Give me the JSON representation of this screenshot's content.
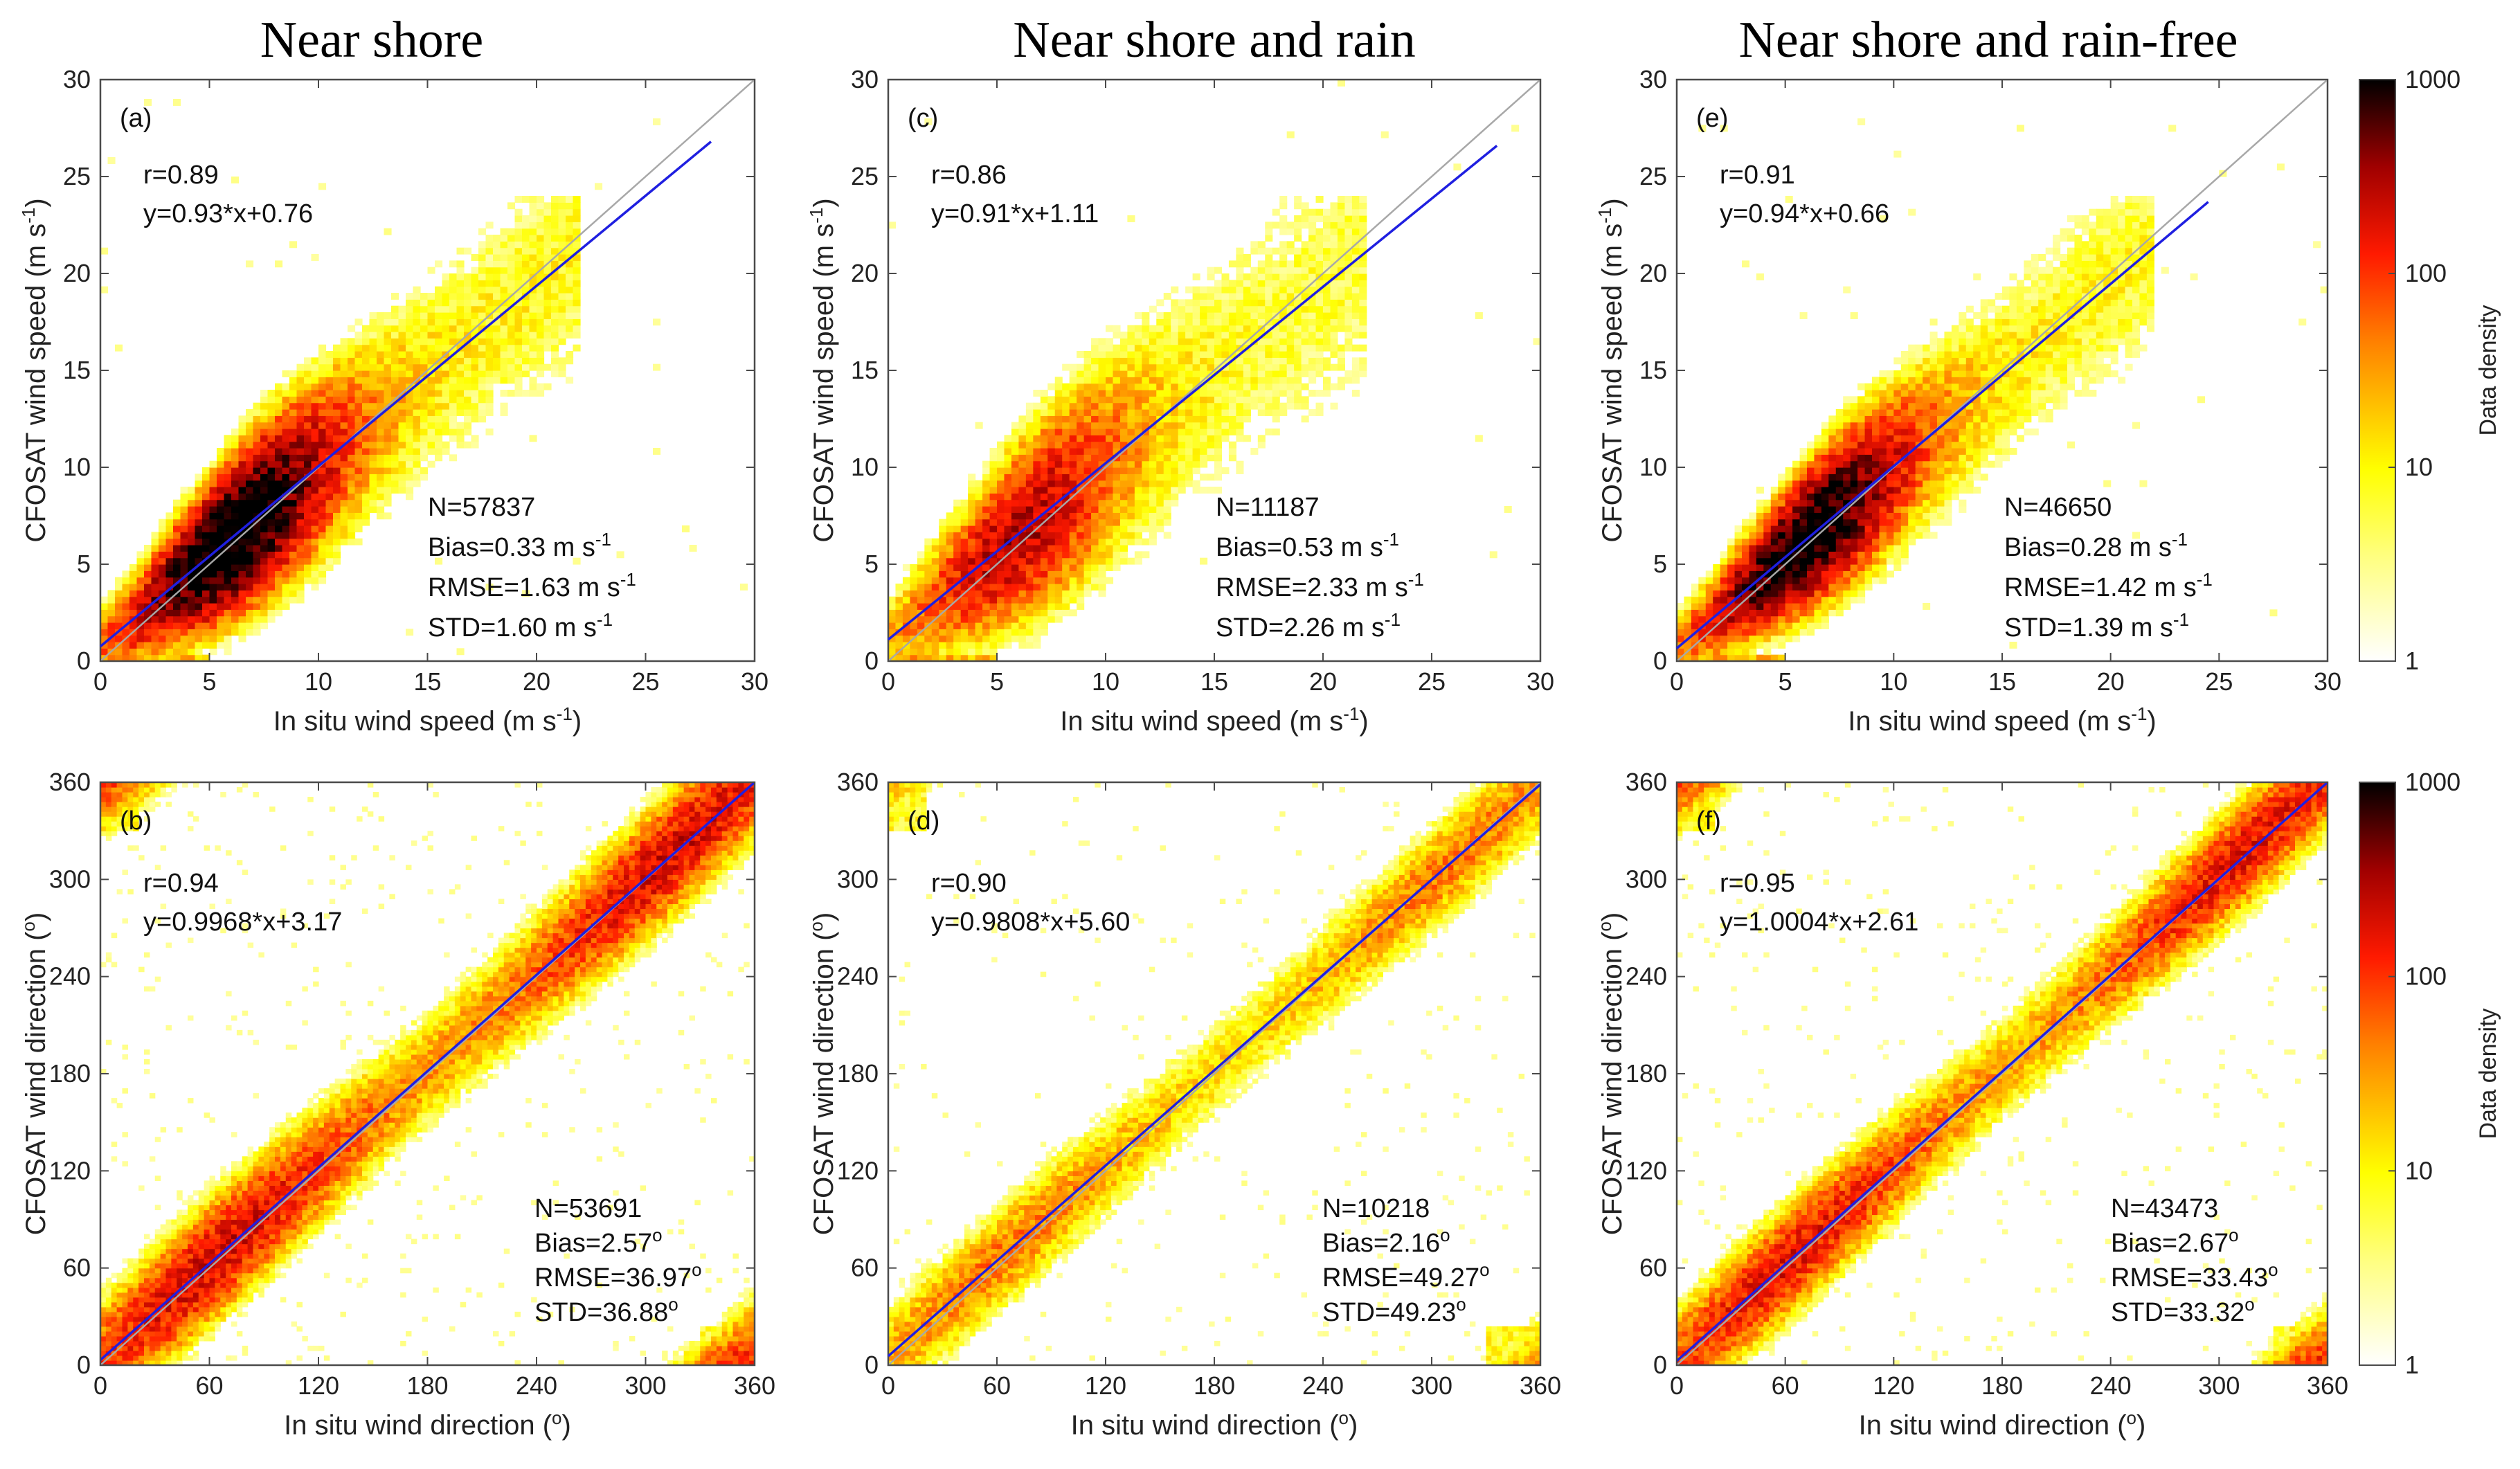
{
  "columns": [
    {
      "title": "Near shore"
    },
    {
      "title": "Near shore and rain"
    },
    {
      "title": "Near shore and rain-free"
    }
  ],
  "colors": {
    "fit_line": "#1f1fe0",
    "identity_line": "#a8a8a8",
    "density_low": "#ffffff",
    "density_mid": "#ff1a00",
    "density_high": "#000000"
  },
  "colorbar": {
    "label": "Data density",
    "ticks": [
      "1",
      "10",
      "100",
      "1000"
    ]
  },
  "rows": [
    {
      "kind": "speed",
      "xlabel": "In situ wind speed (m s",
      "ylabel": "CFOSAT wind speed (m s",
      "unit_sup": "-1",
      "unit_close": ")",
      "lim": [
        0,
        30
      ],
      "ticks": [
        "0",
        "5",
        "10",
        "15",
        "20",
        "25",
        "30"
      ]
    },
    {
      "kind": "direction",
      "xlabel": "In situ wind direction (",
      "ylabel": "CFOSAT wind direction (",
      "unit_sup": "o",
      "unit_close": ")",
      "lim": [
        0,
        360
      ],
      "ticks": [
        "0",
        "60",
        "120",
        "180",
        "240",
        "300",
        "360"
      ]
    }
  ],
  "chart_data": [
    {
      "type": "heatmap",
      "panel": "(a)",
      "column": "Near shore",
      "variable": "wind speed",
      "xlabel": "In situ wind speed (m s-1)",
      "ylabel": "CFOSAT wind speed (m s-1)",
      "xlim": [
        0,
        30
      ],
      "ylim": [
        0,
        30
      ],
      "r": "r=0.89",
      "fit_text": "y=0.93*x+0.76",
      "slope": 0.93,
      "intercept": 0.76,
      "fit_xmax": 28,
      "stats": {
        "n": "N=57837",
        "bias": "Bias=0.33 m s",
        "rmse": "RMSE=1.63 m s",
        "std": "STD=1.60 m s",
        "sup": "-1"
      },
      "colorbar_range": [
        1,
        1000
      ],
      "peak_log_density": 2.6,
      "spread": 2.1
    },
    {
      "type": "heatmap",
      "panel": "(b)",
      "column": "Near shore",
      "variable": "wind direction",
      "xlabel": "In situ wind direction (o)",
      "ylabel": "CFOSAT wind direction (o)",
      "xlim": [
        0,
        360
      ],
      "ylim": [
        0,
        360
      ],
      "r": "r=0.94",
      "fit_text": "y=0.9968*x+3.17",
      "slope": 0.9968,
      "intercept": 3.17,
      "fit_xmax": 360,
      "stats": {
        "n": "N=53691",
        "bias": "Bias=2.57",
        "rmse": "RMSE=36.97",
        "std": "STD=36.88",
        "sup": "o"
      },
      "colorbar_range": [
        1,
        1000
      ],
      "peak_log_density": 2.2,
      "spread": 22
    },
    {
      "type": "heatmap",
      "panel": "(c)",
      "column": "Near shore and rain",
      "variable": "wind speed",
      "xlabel": "In situ wind speed (m s-1)",
      "ylabel": "CFOSAT wind speed (m s-1)",
      "xlim": [
        0,
        30
      ],
      "ylim": [
        0,
        30
      ],
      "r": "r=0.86",
      "fit_text": "y=0.91*x+1.11",
      "slope": 0.91,
      "intercept": 1.11,
      "fit_xmax": 28,
      "stats": {
        "n": "N=11187",
        "bias": "Bias=0.53 m s",
        "rmse": "RMSE=2.33 m s",
        "std": "STD=2.26 m s",
        "sup": "-1"
      },
      "colorbar_range": [
        1,
        1000
      ],
      "peak_log_density": 1.9,
      "spread": 2.6
    },
    {
      "type": "heatmap",
      "panel": "(d)",
      "column": "Near shore and rain",
      "variable": "wind direction",
      "xlabel": "In situ wind direction (o)",
      "ylabel": "CFOSAT wind direction (o)",
      "xlim": [
        0,
        360
      ],
      "ylim": [
        0,
        360
      ],
      "r": "r=0.90",
      "fit_text": "y=0.9808*x+5.60",
      "slope": 0.9808,
      "intercept": 5.6,
      "fit_xmax": 360,
      "stats": {
        "n": "N=10218",
        "bias": "Bias=2.16",
        "rmse": "RMSE=49.27",
        "std": "STD=49.23",
        "sup": "o"
      },
      "colorbar_range": [
        1,
        1000
      ],
      "peak_log_density": 1.5,
      "spread": 20
    },
    {
      "type": "heatmap",
      "panel": "(e)",
      "column": "Near shore and rain-free",
      "variable": "wind speed",
      "xlabel": "In situ wind speed (m s-1)",
      "ylabel": "CFOSAT wind speed (m s-1)",
      "xlim": [
        0,
        30
      ],
      "ylim": [
        0,
        30
      ],
      "r": "r=0.91",
      "fit_text": "y=0.94*x+0.66",
      "slope": 0.94,
      "intercept": 0.66,
      "fit_xmax": 24.5,
      "stats": {
        "n": "N=46650",
        "bias": "Bias=0.28 m s",
        "rmse": "RMSE=1.42 m s",
        "std": "STD=1.39 m s",
        "sup": "-1"
      },
      "colorbar_range": [
        1,
        1000
      ],
      "peak_log_density": 2.5,
      "spread": 1.9
    },
    {
      "type": "heatmap",
      "panel": "(f)",
      "column": "Near shore and rain-free",
      "variable": "wind direction",
      "xlabel": "In situ wind direction (o)",
      "ylabel": "CFOSAT wind direction (o)",
      "xlim": [
        0,
        360
      ],
      "ylim": [
        0,
        360
      ],
      "r": "r=0.95",
      "fit_text": "y=1.0004*x+2.61",
      "slope": 1.0004,
      "intercept": 2.61,
      "fit_xmax": 360,
      "stats": {
        "n": "N=43473",
        "bias": "Bias=2.67",
        "rmse": "RMSE=33.43",
        "std": "STD=33.32",
        "sup": "o"
      },
      "colorbar_range": [
        1,
        1000
      ],
      "peak_log_density": 2.1,
      "spread": 20
    }
  ]
}
